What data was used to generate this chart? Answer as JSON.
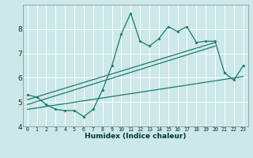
{
  "xlabel": "Humidex (Indice chaleur)",
  "bg_color": "#cce8e8",
  "line_color": "#1a7a6e",
  "xlim": [
    -0.5,
    23.5
  ],
  "ylim": [
    4,
    9
  ],
  "xtick_labels": [
    "0",
    "1",
    "2",
    "3",
    "4",
    "5",
    "6",
    "7",
    "8",
    "9",
    "10",
    "11",
    "12",
    "13",
    "14",
    "15",
    "16",
    "17",
    "18",
    "19",
    "20",
    "21",
    "22",
    "23"
  ],
  "yticks": [
    4,
    5,
    6,
    7,
    8
  ],
  "main_x": [
    0,
    1,
    2,
    3,
    4,
    5,
    6,
    7,
    8,
    9,
    10,
    11,
    12,
    13,
    14,
    15,
    16,
    17,
    18,
    19,
    20,
    21,
    22,
    23
  ],
  "main_y": [
    5.3,
    5.2,
    4.9,
    4.7,
    4.65,
    4.65,
    4.4,
    4.7,
    5.5,
    6.5,
    7.8,
    8.65,
    7.5,
    7.3,
    7.6,
    8.1,
    7.9,
    8.1,
    7.45,
    7.5,
    7.5,
    6.2,
    5.9,
    6.5
  ],
  "line1_x0": 0,
  "line1_y0": 5.1,
  "line1_x1": 20,
  "line1_y1": 7.45,
  "line2_x0": 0,
  "line2_y0": 4.9,
  "line2_x1": 20,
  "line2_y1": 7.3,
  "line3_x0": 0,
  "line3_y0": 4.7,
  "line3_x1": 23,
  "line3_y1": 6.05,
  "grid_color": "#b8d8d8",
  "spine_color": "#888888",
  "tick_color": "#003333",
  "xlabel_fontsize": 6.5,
  "xtick_fontsize": 4.8,
  "ytick_fontsize": 6.5
}
